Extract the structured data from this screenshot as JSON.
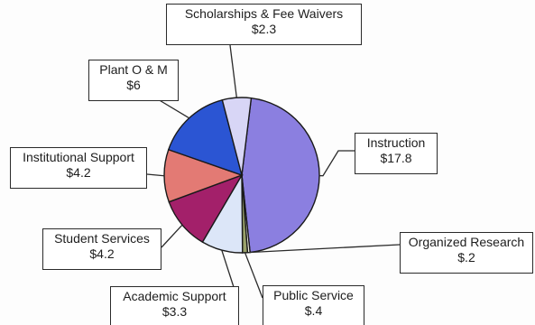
{
  "chart_data": {
    "type": "pie",
    "title": "",
    "unit": "",
    "slices": [
      {
        "label": "Instruction",
        "value": 17.8,
        "value_text": "$17.8",
        "color": "#8b7fe0"
      },
      {
        "label": "Organized Research",
        "value": 0.2,
        "value_text": "$.2",
        "color": "#f0f0e0"
      },
      {
        "label": "Public Service",
        "value": 0.4,
        "value_text": "$.4",
        "color": "#9aa26a"
      },
      {
        "label": "Academic Support",
        "value": 3.3,
        "value_text": "$3.3",
        "color": "#dce6f8"
      },
      {
        "label": "Student Services",
        "value": 4.2,
        "value_text": "$4.2",
        "color": "#a3206a"
      },
      {
        "label": "Institutional Support",
        "value": 4.2,
        "value_text": "$4.2",
        "color": "#e37a74"
      },
      {
        "label": "Plant O & M",
        "value": 6,
        "value_text": "$6",
        "color": "#2b55d3"
      },
      {
        "label": "Scholarships  & Fee Waivers",
        "value": 2.3,
        "value_text": "$2.3",
        "color": "#d8d6f6"
      }
    ]
  }
}
